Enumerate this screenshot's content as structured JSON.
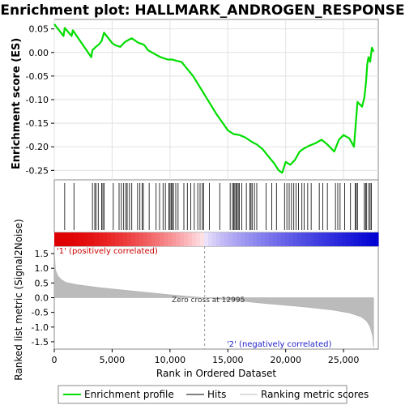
{
  "chart_data": {
    "type": "line",
    "title": "Enrichment plot: HALLMARK_ANDROGEN_RESPONSE",
    "xlabel": "Rank in Ordered Dataset",
    "xlim": [
      0,
      28000
    ],
    "x_ticks": [
      "0",
      "5,000",
      "10,000",
      "15,000",
      "20,000",
      "25,000"
    ],
    "top_panel": {
      "ylabel": "Enrichment score (ES)",
      "ylim": [
        -0.27,
        0.07
      ],
      "y_ticks": [
        "0.05",
        "0.00",
        "-0.05",
        "-0.10",
        "-0.15",
        "-0.20",
        "-0.25"
      ],
      "grid": true,
      "series": [
        {
          "name": "Enrichment profile",
          "color": "#00dd00",
          "x": [
            0,
            800,
            900,
            1500,
            1600,
            3200,
            3300,
            3600,
            3900,
            4100,
            4300,
            5000,
            5300,
            5700,
            6100,
            6500,
            6700,
            7300,
            7600,
            7800,
            8100,
            8800,
            9200,
            9800,
            10200,
            10600,
            11000,
            12000,
            13000,
            14000,
            15000,
            15500,
            16000,
            16500,
            16800,
            17100,
            17500,
            18000,
            18500,
            19000,
            19400,
            19700,
            20000,
            20400,
            20800,
            21200,
            21500,
            22000,
            22600,
            23100,
            23600,
            24200,
            24600,
            25000,
            25500,
            25900,
            26200,
            26600,
            26800,
            26950,
            27050,
            27150,
            27300,
            27450,
            27600
          ],
          "y": [
            0.06,
            0.035,
            0.052,
            0.035,
            0.047,
            -0.01,
            0.005,
            0.012,
            0.018,
            0.025,
            0.042,
            0.02,
            0.015,
            0.012,
            0.022,
            0.028,
            0.03,
            0.02,
            0.018,
            0.015,
            0.005,
            -0.005,
            -0.01,
            -0.015,
            -0.015,
            -0.018,
            -0.02,
            -0.05,
            -0.09,
            -0.13,
            -0.165,
            -0.173,
            -0.175,
            -0.18,
            -0.185,
            -0.19,
            -0.195,
            -0.205,
            -0.22,
            -0.235,
            -0.25,
            -0.255,
            -0.232,
            -0.238,
            -0.228,
            -0.21,
            -0.205,
            -0.198,
            -0.192,
            -0.185,
            -0.195,
            -0.21,
            -0.185,
            -0.175,
            -0.182,
            -0.2,
            -0.105,
            -0.115,
            -0.095,
            -0.06,
            -0.025,
            -0.01,
            -0.02,
            0.01,
            0.002
          ]
        }
      ]
    },
    "hits_panel": {
      "series_name": "Hits",
      "positions": [
        900,
        1700,
        3300,
        3500,
        3600,
        3800,
        4100,
        4200,
        4300,
        5100,
        5600,
        5800,
        6000,
        6200,
        6300,
        6500,
        6700,
        7200,
        7400,
        7600,
        7700,
        8200,
        8800,
        9100,
        9400,
        9600,
        9900,
        10000,
        10100,
        10200,
        10300,
        10500,
        10700,
        11200,
        11500,
        11800,
        12100,
        12400,
        12600,
        12800,
        12900,
        13400,
        14300,
        15200,
        15400,
        15500,
        15600,
        15700,
        15800,
        15900,
        16000,
        16200,
        16600,
        16900,
        17000,
        17100,
        17300,
        17500,
        18300,
        18800,
        19200,
        19900,
        20100,
        20300,
        20500,
        20700,
        20900,
        21100,
        21400,
        21600,
        21900,
        22200,
        22900,
        23200,
        23600,
        24300,
        24500,
        24700,
        25100,
        25600,
        26000,
        26100,
        26200,
        26800,
        26900,
        27000,
        27200,
        27300,
        27400
      ]
    },
    "ranked_panel": {
      "series_name": "Ranking metric scores",
      "ylabel": "Ranked list metric (Signal2Noise)",
      "ylim": [
        -1.75,
        1.75
      ],
      "y_ticks": [
        "1.5",
        "1.0",
        "0.5",
        "0.0",
        "-0.5",
        "-1.0",
        "-1.5"
      ],
      "x": [
        0,
        100,
        300,
        600,
        1000,
        2000,
        4000,
        6000,
        8000,
        10000,
        12000,
        12995,
        14000,
        16000,
        18000,
        20000,
        22000,
        24000,
        25500,
        26500,
        27000,
        27300,
        27500,
        27600
      ],
      "y": [
        1.72,
        0.95,
        0.75,
        0.62,
        0.52,
        0.44,
        0.34,
        0.26,
        0.18,
        0.1,
        0.03,
        0.0,
        -0.04,
        -0.11,
        -0.19,
        -0.26,
        -0.33,
        -0.42,
        -0.52,
        -0.65,
        -0.8,
        -1.0,
        -1.3,
        -1.7
      ],
      "zero_cross_label": "Zero cross at 12995",
      "zero_cross_x": 12995,
      "pos_label": "'1' (positively correlated)",
      "neg_label": "'2' (negatively correlated)"
    },
    "legend": {
      "items": [
        "Enrichment profile",
        "Hits",
        "Ranking metric scores"
      ],
      "placement": "bottom"
    }
  }
}
